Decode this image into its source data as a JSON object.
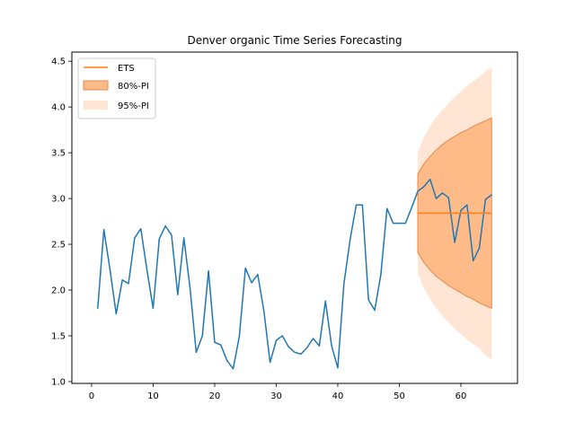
{
  "chart_data": {
    "type": "line",
    "title": "Denver organic Time Series Forecasting",
    "xlabel": "",
    "ylabel": "",
    "xlim": [
      -3.2,
      69.2
    ],
    "ylim": [
      0.98,
      4.6
    ],
    "x_ticks": [
      0,
      10,
      20,
      30,
      40,
      50,
      60
    ],
    "y_ticks": [
      1.0,
      1.5,
      2.0,
      2.5,
      3.0,
      3.5,
      4.0,
      4.5
    ],
    "x_tick_labels": [
      "0",
      "10",
      "20",
      "30",
      "40",
      "50",
      "60"
    ],
    "y_tick_labels": [
      "1.0",
      "1.5",
      "2.0",
      "2.5",
      "3.0",
      "3.5",
      "4.0",
      "4.5"
    ],
    "grid": false,
    "legend_position": "top-left",
    "colors": {
      "observed": "#1f77b4",
      "ets": "#ff7f0e",
      "pi80": "#ffbb87",
      "pi80_edge": "#e8884a",
      "pi95": "#ffe5d3"
    },
    "series": [
      {
        "role": "observed",
        "x": [
          1,
          2,
          3,
          4,
          5,
          6,
          7,
          8,
          9,
          10,
          11,
          12,
          13,
          14,
          15,
          16,
          17,
          18,
          19,
          20,
          21,
          22,
          23,
          24,
          25,
          26,
          27,
          28,
          29,
          30,
          31,
          32,
          33,
          34,
          35,
          36,
          37,
          38,
          39,
          40,
          41,
          42,
          43,
          44,
          45,
          46,
          47,
          48,
          49,
          50,
          51,
          52,
          53,
          54,
          55,
          56,
          57,
          58,
          59,
          60,
          61,
          62,
          63,
          64,
          65
        ],
        "values": [
          1.8,
          2.66,
          2.22,
          1.74,
          2.11,
          2.07,
          2.57,
          2.67,
          2.22,
          1.8,
          2.56,
          2.7,
          2.6,
          1.95,
          2.57,
          2.02,
          1.32,
          1.5,
          2.21,
          1.43,
          1.4,
          1.23,
          1.14,
          1.49,
          2.24,
          2.08,
          2.17,
          1.77,
          1.21,
          1.45,
          1.5,
          1.38,
          1.32,
          1.3,
          1.37,
          1.47,
          1.39,
          1.88,
          1.39,
          1.15,
          2.07,
          2.55,
          2.93,
          2.93,
          1.89,
          1.78,
          2.17,
          2.89,
          2.73,
          2.73,
          2.73,
          2.9,
          3.08,
          3.13,
          3.21,
          3.0,
          3.06,
          3.01,
          2.52,
          2.87,
          2.93,
          2.32,
          2.46,
          2.99,
          3.04
        ]
      },
      {
        "name": "ETS",
        "role": "forecast",
        "x": [
          53,
          65
        ],
        "values": [
          2.84,
          2.84
        ]
      }
    ],
    "intervals": [
      {
        "name": "95%-PI",
        "x": [
          53,
          54,
          55,
          56,
          57,
          58,
          59,
          60,
          61,
          62,
          63,
          64,
          65
        ],
        "lower": [
          2.18,
          2.02,
          1.9,
          1.8,
          1.72,
          1.65,
          1.58,
          1.52,
          1.46,
          1.41,
          1.36,
          1.29,
          1.24
        ],
        "upper": [
          3.5,
          3.67,
          3.79,
          3.89,
          3.97,
          4.04,
          4.11,
          4.17,
          4.23,
          4.28,
          4.33,
          4.39,
          4.44
        ]
      },
      {
        "name": "80%-PI",
        "x": [
          53,
          54,
          55,
          56,
          57,
          58,
          59,
          60,
          61,
          62,
          63,
          64,
          65
        ],
        "lower": [
          2.41,
          2.3,
          2.22,
          2.15,
          2.1,
          2.05,
          2.01,
          1.97,
          1.93,
          1.9,
          1.86,
          1.83,
          1.8
        ],
        "upper": [
          3.27,
          3.38,
          3.46,
          3.53,
          3.59,
          3.64,
          3.68,
          3.72,
          3.75,
          3.79,
          3.82,
          3.85,
          3.88
        ]
      }
    ],
    "legend": [
      "ETS",
      "80%-PI",
      "95%-PI"
    ]
  }
}
